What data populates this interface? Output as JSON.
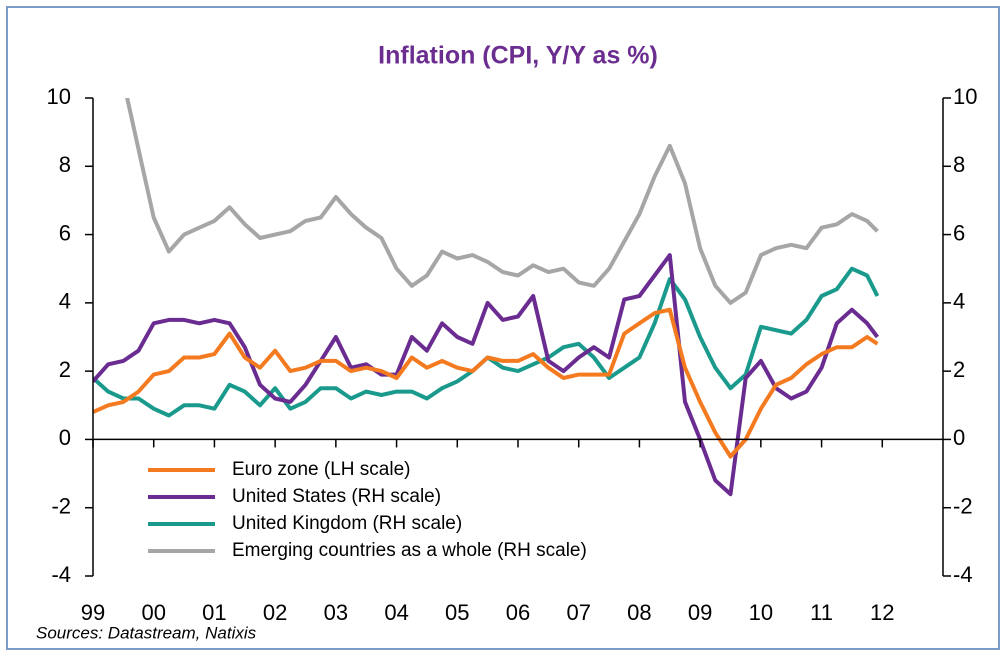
{
  "chart_data": {
    "type": "line",
    "title": "Inflation (CPI, Y/Y as %)",
    "source": "Sources: Datastream, Natixis",
    "x": [
      1999,
      1999.25,
      1999.5,
      1999.75,
      2000,
      2000.25,
      2000.5,
      2000.75,
      2001,
      2001.25,
      2001.5,
      2001.75,
      2002,
      2002.25,
      2002.5,
      2002.75,
      2003,
      2003.25,
      2003.5,
      2003.75,
      2004,
      2004.25,
      2004.5,
      2004.75,
      2005,
      2005.25,
      2005.5,
      2005.75,
      2006,
      2006.25,
      2006.5,
      2006.75,
      2007,
      2007.25,
      2007.5,
      2007.75,
      2008,
      2008.25,
      2008.5,
      2008.75,
      2009,
      2009.25,
      2009.5,
      2009.75,
      2010,
      2010.25,
      2010.5,
      2010.75,
      2011,
      2011.25,
      2011.5,
      2011.75,
      2011.92
    ],
    "series": [
      {
        "name": "Euro zone (LH scale)",
        "color": "#f47a20",
        "values": [
          0.8,
          1.0,
          1.1,
          1.4,
          1.9,
          2.0,
          2.4,
          2.4,
          2.5,
          3.1,
          2.4,
          2.1,
          2.6,
          2.0,
          2.1,
          2.3,
          2.3,
          2.0,
          2.1,
          2.0,
          1.8,
          2.4,
          2.1,
          2.3,
          2.1,
          2.0,
          2.4,
          2.3,
          2.3,
          2.5,
          2.1,
          1.8,
          1.9,
          1.9,
          1.9,
          3.1,
          3.4,
          3.7,
          3.8,
          2.1,
          1.1,
          0.2,
          -0.5,
          0.0,
          0.9,
          1.6,
          1.8,
          2.2,
          2.5,
          2.7,
          2.7,
          3.0,
          2.8
        ]
      },
      {
        "name": "United States (RH scale)",
        "color": "#6a2c91",
        "axis": "y2",
        "values": [
          1.7,
          2.2,
          2.3,
          2.6,
          3.4,
          3.5,
          3.5,
          3.4,
          3.5,
          3.4,
          2.7,
          1.6,
          1.2,
          1.1,
          1.6,
          2.3,
          3.0,
          2.1,
          2.2,
          1.9,
          1.9,
          3.0,
          2.6,
          3.4,
          3.0,
          2.8,
          4.0,
          3.5,
          3.6,
          4.2,
          2.3,
          2.0,
          2.4,
          2.7,
          2.4,
          4.1,
          4.2,
          4.8,
          5.4,
          1.1,
          0.0,
          -1.2,
          -1.6,
          1.8,
          2.3,
          1.5,
          1.2,
          1.4,
          2.1,
          3.4,
          3.8,
          3.4,
          3.0
        ]
      },
      {
        "name": "United Kingdom (RH scale)",
        "color": "#1a9a8c",
        "axis": "y2",
        "values": [
          1.8,
          1.4,
          1.2,
          1.2,
          0.9,
          0.7,
          1.0,
          1.0,
          0.9,
          1.6,
          1.4,
          1.0,
          1.5,
          0.9,
          1.1,
          1.5,
          1.5,
          1.2,
          1.4,
          1.3,
          1.4,
          1.4,
          1.2,
          1.5,
          1.7,
          2.0,
          2.4,
          2.1,
          2.0,
          2.2,
          2.4,
          2.7,
          2.8,
          2.4,
          1.8,
          2.1,
          2.4,
          3.4,
          4.7,
          4.1,
          3.0,
          2.1,
          1.5,
          1.9,
          3.3,
          3.2,
          3.1,
          3.5,
          4.2,
          4.4,
          5.0,
          4.8,
          4.2
        ]
      },
      {
        "name": "Emerging countries as a whole (RH scale)",
        "color": "#a6a6a6",
        "axis": "y2",
        "values": [
          null,
          null,
          10.5,
          8.5,
          6.5,
          5.5,
          6.0,
          6.2,
          6.4,
          6.8,
          6.3,
          5.9,
          6.0,
          6.1,
          6.4,
          6.5,
          7.1,
          6.6,
          6.2,
          5.9,
          5.0,
          4.5,
          4.8,
          5.5,
          5.3,
          5.4,
          5.2,
          4.9,
          4.8,
          5.1,
          4.9,
          5.0,
          4.6,
          4.5,
          5.0,
          5.8,
          6.6,
          7.7,
          8.6,
          7.5,
          5.6,
          4.5,
          4.0,
          4.3,
          5.4,
          5.6,
          5.7,
          5.6,
          6.2,
          6.3,
          6.6,
          6.4,
          6.1
        ]
      }
    ],
    "xlim": [
      1999,
      2013
    ],
    "xticks": [
      {
        "value": 1999,
        "label": "99"
      },
      {
        "value": 2000,
        "label": "00"
      },
      {
        "value": 2001,
        "label": "01"
      },
      {
        "value": 2002,
        "label": "02"
      },
      {
        "value": 2003,
        "label": "03"
      },
      {
        "value": 2004,
        "label": "04"
      },
      {
        "value": 2005,
        "label": "05"
      },
      {
        "value": 2006,
        "label": "06"
      },
      {
        "value": 2007,
        "label": "07"
      },
      {
        "value": 2008,
        "label": "08"
      },
      {
        "value": 2009,
        "label": "09"
      },
      {
        "value": 2010,
        "label": "10"
      },
      {
        "value": 2011,
        "label": "11"
      },
      {
        "value": 2012,
        "label": "12"
      }
    ],
    "ylim": [
      -4,
      10
    ],
    "yticks": [
      -4,
      -2,
      0,
      2,
      4,
      6,
      8,
      10
    ],
    "y2lim": [
      -4,
      10
    ],
    "y2ticks": [
      -4,
      -2,
      0,
      2,
      4,
      6,
      8,
      10
    ],
    "legend": "lower left"
  }
}
